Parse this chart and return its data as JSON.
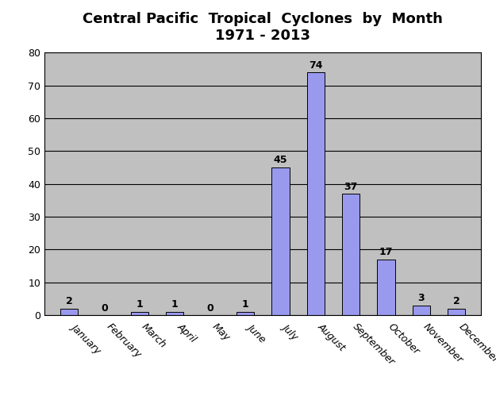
{
  "title_line1": "Central Pacific  Tropical  Cyclones  by  Month",
  "title_line2": "1971 - 2013",
  "categories": [
    "January",
    "February",
    "March",
    "April",
    "May",
    "June",
    "July",
    "August",
    "September",
    "October",
    "November",
    "December"
  ],
  "values": [
    2,
    0,
    1,
    1,
    0,
    1,
    45,
    74,
    37,
    17,
    3,
    2
  ],
  "bar_color": "#9999ee",
  "bar_edgecolor": "#000000",
  "plot_bg_color": "#c0c0c0",
  "fig_bg_color": "#ffffff",
  "ylim": [
    0,
    80
  ],
  "yticks": [
    0,
    10,
    20,
    30,
    40,
    50,
    60,
    70,
    80
  ],
  "title_fontsize": 13,
  "tick_fontsize": 9,
  "label_fontsize": 9,
  "bar_width": 0.5,
  "grid_color": "#000000",
  "grid_linewidth": 0.8
}
